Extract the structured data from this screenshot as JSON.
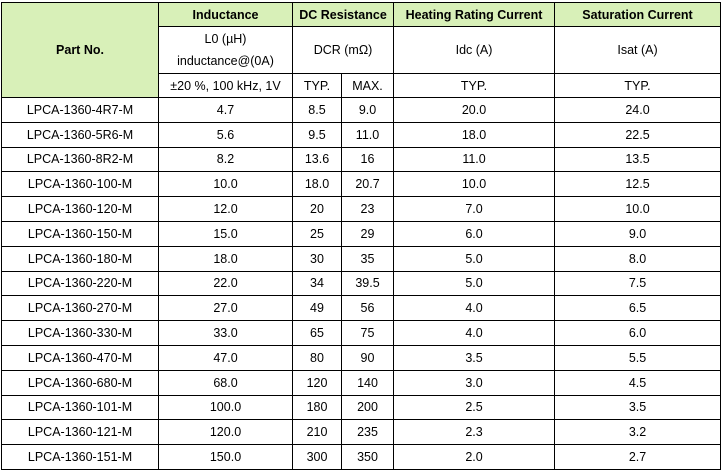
{
  "header": {
    "part_no": "Part No.",
    "inductance": "Inductance",
    "dc_resistance": "DC Resistance",
    "heating": "Heating Rating Current",
    "saturation": "Saturation Current"
  },
  "subheader": {
    "l0_line1": "L0 (µH)",
    "l0_line2": "inductance@(0A)",
    "dcr": "DCR (mΩ)",
    "idc": "Idc (A)",
    "isat": "Isat (A)",
    "tolerance": "±20 %, 100 kHz, 1V",
    "dcr_typ": "TYP.",
    "dcr_max": "MAX.",
    "idc_typ": "TYP.",
    "isat_typ": "TYP."
  },
  "rows": [
    {
      "part": "LPCA-1360-4R7-M",
      "l0": "4.7",
      "dcr_typ": "8.5",
      "dcr_max": "9.0",
      "idc": "20.0",
      "isat": "24.0"
    },
    {
      "part": "LPCA-1360-5R6-M",
      "l0": "5.6",
      "dcr_typ": "9.5",
      "dcr_max": "11.0",
      "idc": "18.0",
      "isat": "22.5"
    },
    {
      "part": "LPCA-1360-8R2-M",
      "l0": "8.2",
      "dcr_typ": "13.6",
      "dcr_max": "16",
      "idc": "11.0",
      "isat": "13.5"
    },
    {
      "part": "LPCA-1360-100-M",
      "l0": "10.0",
      "dcr_typ": "18.0",
      "dcr_max": "20.7",
      "idc": "10.0",
      "isat": "12.5"
    },
    {
      "part": "LPCA-1360-120-M",
      "l0": "12.0",
      "dcr_typ": "20",
      "dcr_max": "23",
      "idc": "7.0",
      "isat": "10.0"
    },
    {
      "part": "LPCA-1360-150-M",
      "l0": "15.0",
      "dcr_typ": "25",
      "dcr_max": "29",
      "idc": "6.0",
      "isat": "9.0"
    },
    {
      "part": "LPCA-1360-180-M",
      "l0": "18.0",
      "dcr_typ": "30",
      "dcr_max": "35",
      "idc": "5.0",
      "isat": "8.0"
    },
    {
      "part": "LPCA-1360-220-M",
      "l0": "22.0",
      "dcr_typ": "34",
      "dcr_max": "39.5",
      "idc": "5.0",
      "isat": "7.5"
    },
    {
      "part": "LPCA-1360-270-M",
      "l0": "27.0",
      "dcr_typ": "49",
      "dcr_max": "56",
      "idc": "4.0",
      "isat": "6.5"
    },
    {
      "part": "LPCA-1360-330-M",
      "l0": "33.0",
      "dcr_typ": "65",
      "dcr_max": "75",
      "idc": "4.0",
      "isat": "6.0"
    },
    {
      "part": "LPCA-1360-470-M",
      "l0": "47.0",
      "dcr_typ": "80",
      "dcr_max": "90",
      "idc": "3.5",
      "isat": "5.5"
    },
    {
      "part": "LPCA-1360-680-M",
      "l0": "68.0",
      "dcr_typ": "120",
      "dcr_max": "140",
      "idc": "3.0",
      "isat": "4.5"
    },
    {
      "part": "LPCA-1360-101-M",
      "l0": "100.0",
      "dcr_typ": "180",
      "dcr_max": "200",
      "idc": "2.5",
      "isat": "3.5"
    },
    {
      "part": "LPCA-1360-121-M",
      "l0": "120.0",
      "dcr_typ": "210",
      "dcr_max": "235",
      "idc": "2.3",
      "isat": "3.2"
    },
    {
      "part": "LPCA-1360-151-M",
      "l0": "150.0",
      "dcr_typ": "300",
      "dcr_max": "350",
      "idc": "2.0",
      "isat": "2.7"
    }
  ],
  "colors": {
    "header_fill": "#d8f0b8",
    "border": "#000000"
  }
}
